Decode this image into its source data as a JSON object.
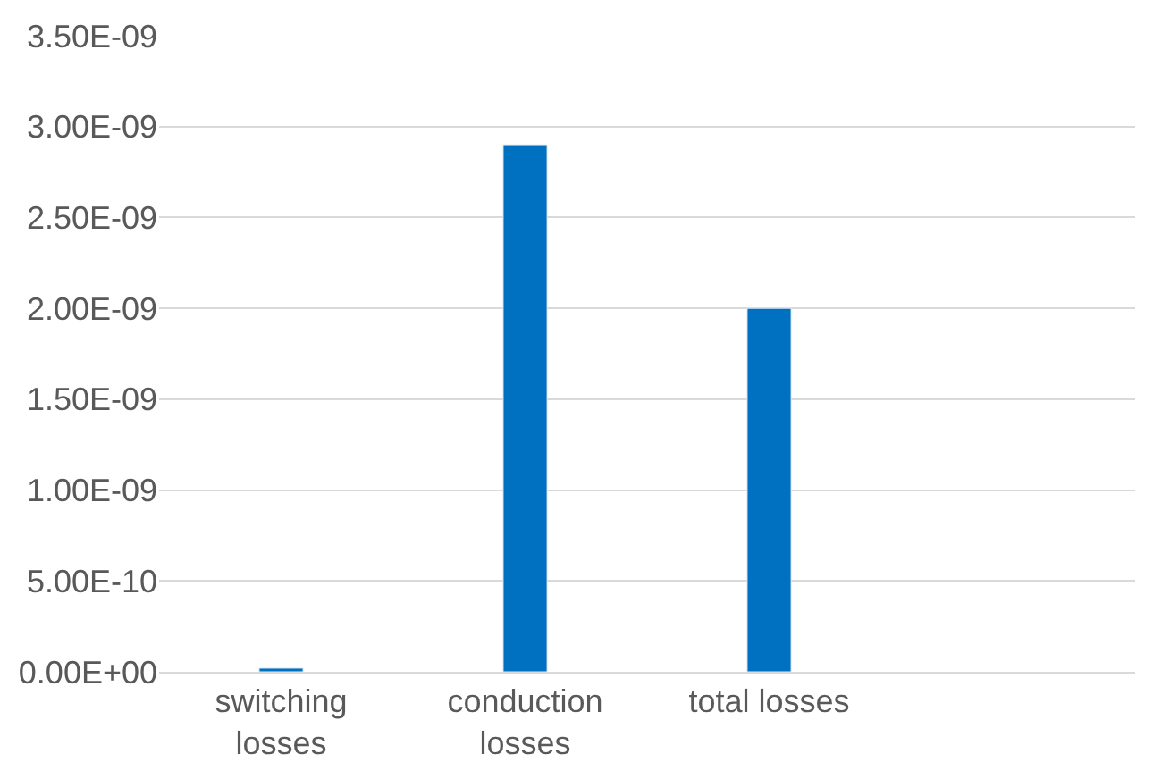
{
  "chart_data": {
    "type": "bar",
    "categories": [
      "switching\nlosses",
      "conduction\nlosses",
      "total losses",
      null
    ],
    "values": [
      2e-11,
      2.9e-09,
      2e-09,
      null
    ],
    "color": "#0070c0",
    "ylim": [
      0,
      3.5e-09
    ],
    "yticks": [
      {
        "value": 0,
        "label": "0.00E+00"
      },
      {
        "value": 5e-10,
        "label": "5.00E-10"
      },
      {
        "value": 1e-09,
        "label": "1.00E-09"
      },
      {
        "value": 1.5e-09,
        "label": "1.50E-09"
      },
      {
        "value": 2e-09,
        "label": "2.00E-09"
      },
      {
        "value": 2.5e-09,
        "label": "2.50E-09"
      },
      {
        "value": 3e-09,
        "label": "3.00E-09"
      },
      {
        "value": 3.5e-09,
        "label": "3.50E-09"
      }
    ],
    "grid": "y"
  }
}
